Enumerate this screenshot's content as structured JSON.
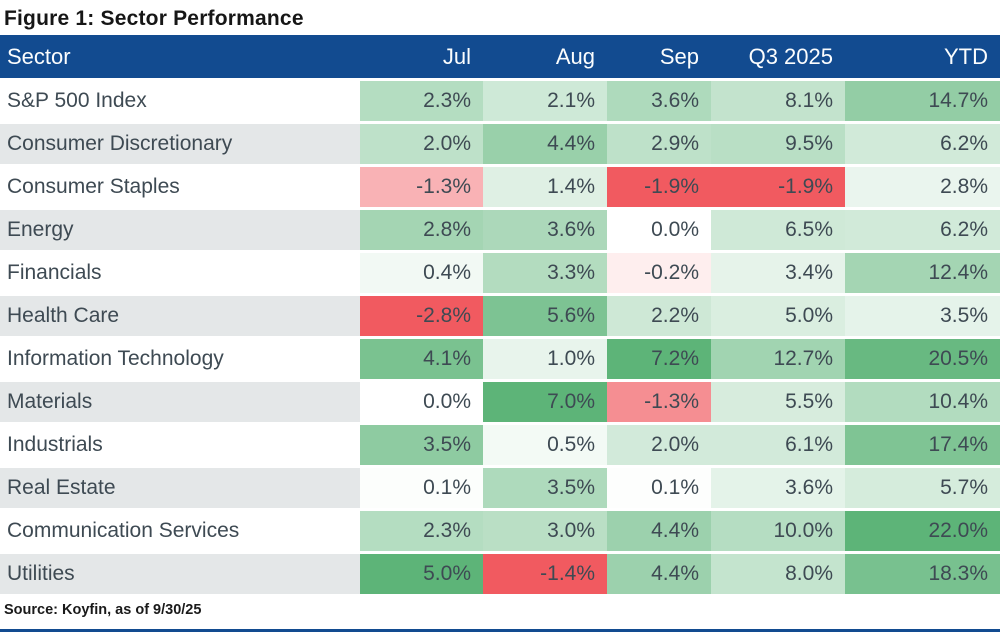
{
  "title": "Figure 1: Sector Performance",
  "source": "Source: Koyfin, as of 9/30/25",
  "chart_data": {
    "type": "heatmap",
    "columns": [
      "Sector",
      "Jul",
      "Aug",
      "Sep",
      "Q3 2025",
      "YTD"
    ],
    "rows": [
      {
        "sector": "S&P 500 Index",
        "values": [
          2.3,
          2.1,
          3.6,
          8.1,
          14.7
        ]
      },
      {
        "sector": "Consumer Discretionary",
        "values": [
          2.0,
          4.4,
          2.9,
          9.5,
          6.2
        ]
      },
      {
        "sector": "Consumer Staples",
        "values": [
          -1.3,
          1.4,
          -1.9,
          -1.9,
          2.8
        ]
      },
      {
        "sector": "Energy",
        "values": [
          2.8,
          3.6,
          0.0,
          6.5,
          6.2
        ]
      },
      {
        "sector": "Financials",
        "values": [
          0.4,
          3.3,
          -0.2,
          3.4,
          12.4
        ]
      },
      {
        "sector": "Health Care",
        "values": [
          -2.8,
          5.6,
          2.2,
          5.0,
          3.5
        ]
      },
      {
        "sector": "Information Technology",
        "values": [
          4.1,
          1.0,
          7.2,
          12.7,
          20.5
        ]
      },
      {
        "sector": "Materials",
        "values": [
          0.0,
          7.0,
          -1.3,
          5.5,
          10.4
        ]
      },
      {
        "sector": "Industrials",
        "values": [
          3.5,
          0.5,
          2.0,
          6.1,
          17.4
        ]
      },
      {
        "sector": "Real Estate",
        "values": [
          0.1,
          3.5,
          0.1,
          3.6,
          5.7
        ]
      },
      {
        "sector": "Communication Services",
        "values": [
          2.3,
          3.0,
          4.4,
          10.0,
          22.0
        ]
      },
      {
        "sector": "Utilities",
        "values": [
          5.0,
          -1.4,
          4.4,
          8.0,
          18.3
        ]
      }
    ],
    "value_suffix": "%",
    "value_decimals": 1,
    "color_scale": {
      "midpoint_value": 0,
      "midpoint_color": "#FFFFFF",
      "positive_color": "#5DB478",
      "negative_color": "#F15A60",
      "column_scales": [
        {
          "column": "Jul",
          "min": -2.8,
          "max": 5.0
        },
        {
          "column": "Aug",
          "min": -1.4,
          "max": 7.0
        },
        {
          "column": "Sep",
          "min": -1.9,
          "max": 7.2
        },
        {
          "column": "Q3 2025",
          "min": -1.9,
          "max": 22.0
        },
        {
          "column": "YTD",
          "min": -1.9,
          "max": 22.0
        }
      ]
    },
    "style": {
      "header_bg": "#124B90",
      "header_text": "#FBFDFE",
      "row_bg": "#FFFFFF",
      "row_alt_bg": "#E4E7E8",
      "cell_text": "#3E4A53",
      "bottom_rule": "#124B90"
    }
  }
}
